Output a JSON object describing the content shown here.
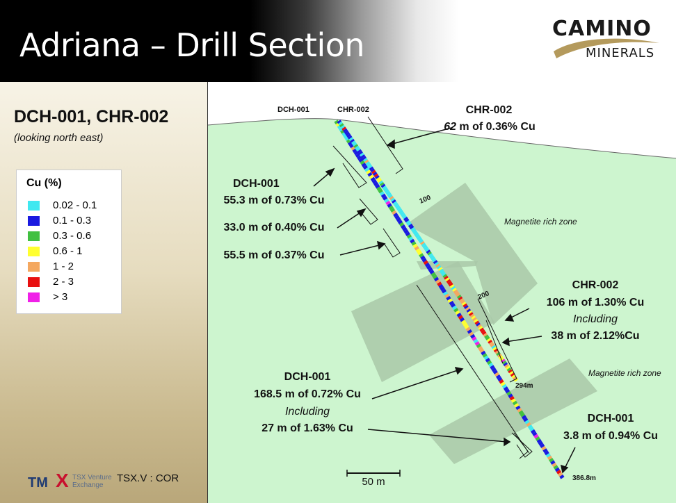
{
  "header": {
    "title": "Adriana – Drill Section",
    "logo_line1": "CAMINO",
    "logo_line2": "MINERALS"
  },
  "left_panel": {
    "section_title": "DCH-001, CHR-002",
    "section_subtitle": "(looking north east)"
  },
  "legend": {
    "title": "Cu (%)",
    "items": [
      {
        "label": "0.02 - 0.1",
        "color": "#40e8f0"
      },
      {
        "label": "0.1 - 0.3",
        "color": "#1a1ae0"
      },
      {
        "label": "0.3 - 0.6",
        "color": "#40c040"
      },
      {
        "label": "0.6 - 1",
        "color": "#ffff30"
      },
      {
        "label": "1 - 2",
        "color": "#f4a860"
      },
      {
        "label": "2 - 3",
        "color": "#e81010"
      },
      {
        "label": "> 3",
        "color": "#f020e8"
      }
    ]
  },
  "footer": {
    "tmx": "TM",
    "tmx_x": "X",
    "tsx_line1": "TSX Venture",
    "tsx_line2": "Exchange",
    "ticker": "TSX.V : COR"
  },
  "diagram": {
    "holes": {
      "dch": "DCH-001",
      "chr": "CHR-002"
    },
    "depth_marks": {
      "d100": "100",
      "d200": "200",
      "d294": "294m",
      "d386": "386.8m"
    },
    "zones": {
      "zone1": "Magnetite rich zone",
      "zone2": "Magnetite rich zone"
    },
    "intercepts": {
      "chr_top_title": "CHR-002",
      "chr_top_value": "62",
      "chr_top_rest": " m of 0.36% Cu",
      "dch_a_title": "DCH-001",
      "dch_a_value": "55.3 m of 0.73% Cu",
      "dch_b_value": "33.0 m of 0.40% Cu",
      "dch_c_value": "55.5 m of 0.37% Cu",
      "chr_mid_title": "CHR-002",
      "chr_mid_value": "106 m of 1.30% Cu",
      "chr_mid_including": "Including",
      "chr_mid_sub": "38 m of 2.12%Cu",
      "dch_main_title": "DCH-001",
      "dch_main_value": "168.5 m of 0.72% Cu",
      "dch_main_including": "Including",
      "dch_main_sub": "27 m of 1.63% Cu",
      "dch_bot_title": "DCH-001",
      "dch_bot_value": "3.8 m of 0.94% Cu"
    },
    "scale_bar": "50 m"
  }
}
